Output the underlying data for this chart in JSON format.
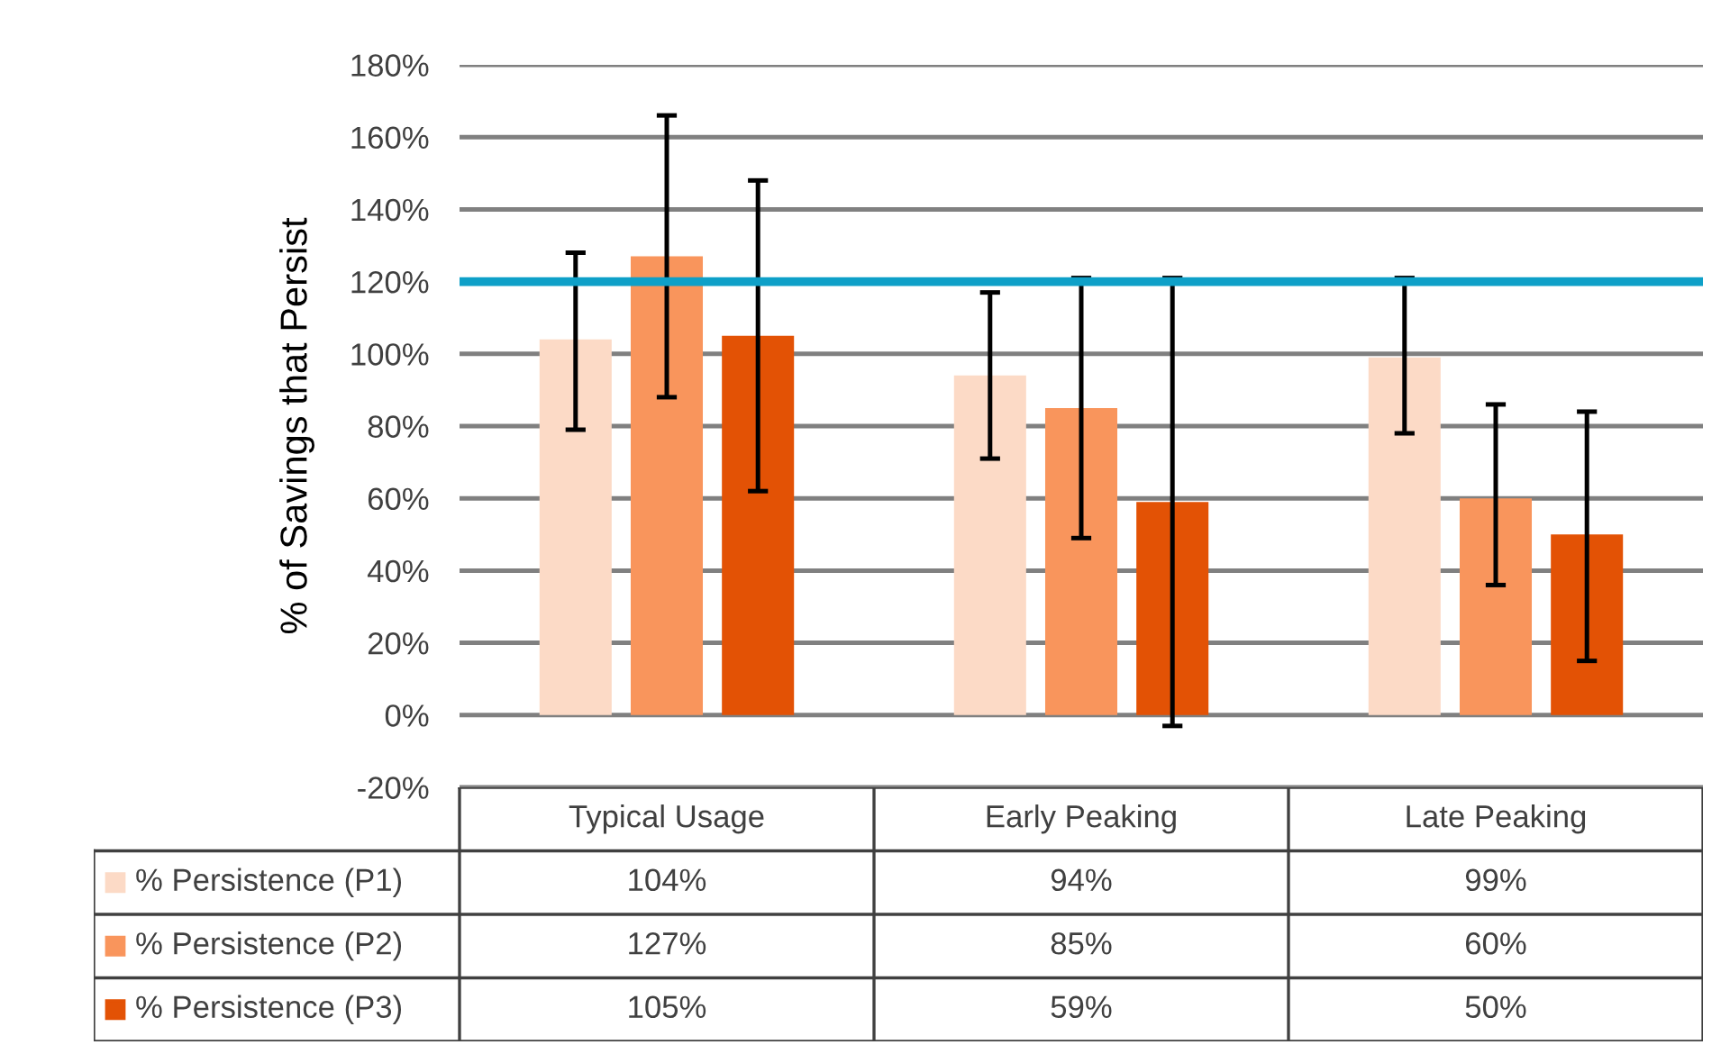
{
  "chart_data": {
    "type": "bar",
    "ylabel": "% of Savings that Persist",
    "categories": [
      "Typical Usage",
      "Early Peaking",
      "Late Peaking"
    ],
    "series": [
      {
        "name": "% Persistence (P1)",
        "color": "#fcdac6",
        "values": [
          104,
          94,
          99
        ],
        "value_labels": [
          "104%",
          "94%",
          "99%"
        ],
        "errors": [
          [
            79,
            128
          ],
          [
            71,
            117
          ],
          [
            78,
            121
          ]
        ]
      },
      {
        "name": "% Persistence (P2)",
        "color": "#f9955c",
        "values": [
          127,
          85,
          60
        ],
        "value_labels": [
          "127%",
          "85%",
          "60%"
        ],
        "errors": [
          [
            88,
            166
          ],
          [
            49,
            121
          ],
          [
            36,
            86
          ]
        ]
      },
      {
        "name": "% Persistence (P3)",
        "color": "#e35205",
        "values": [
          105,
          59,
          50
        ],
        "value_labels": [
          "105%",
          "59%",
          "50%"
        ],
        "errors": [
          [
            62,
            148
          ],
          [
            -3,
            121
          ],
          [
            15,
            84
          ]
        ]
      }
    ],
    "ylim": [
      -20,
      180
    ],
    "yticks": [
      {
        "value": -20,
        "label": "-20%"
      },
      {
        "value": 0,
        "label": "0%"
      },
      {
        "value": 20,
        "label": "20%"
      },
      {
        "value": 40,
        "label": "40%"
      },
      {
        "value": 60,
        "label": "60%"
      },
      {
        "value": 80,
        "label": "80%"
      },
      {
        "value": 100,
        "label": "100%"
      },
      {
        "value": 120,
        "label": "120%"
      },
      {
        "value": 140,
        "label": "140%"
      },
      {
        "value": 160,
        "label": "160%"
      },
      {
        "value": 180,
        "label": "180%"
      }
    ],
    "ref_lines": [
      {
        "axis": "y",
        "value": 120,
        "label": null,
        "color": "#0ea0c8"
      }
    ],
    "grid": "y",
    "legend": "bottom left"
  }
}
